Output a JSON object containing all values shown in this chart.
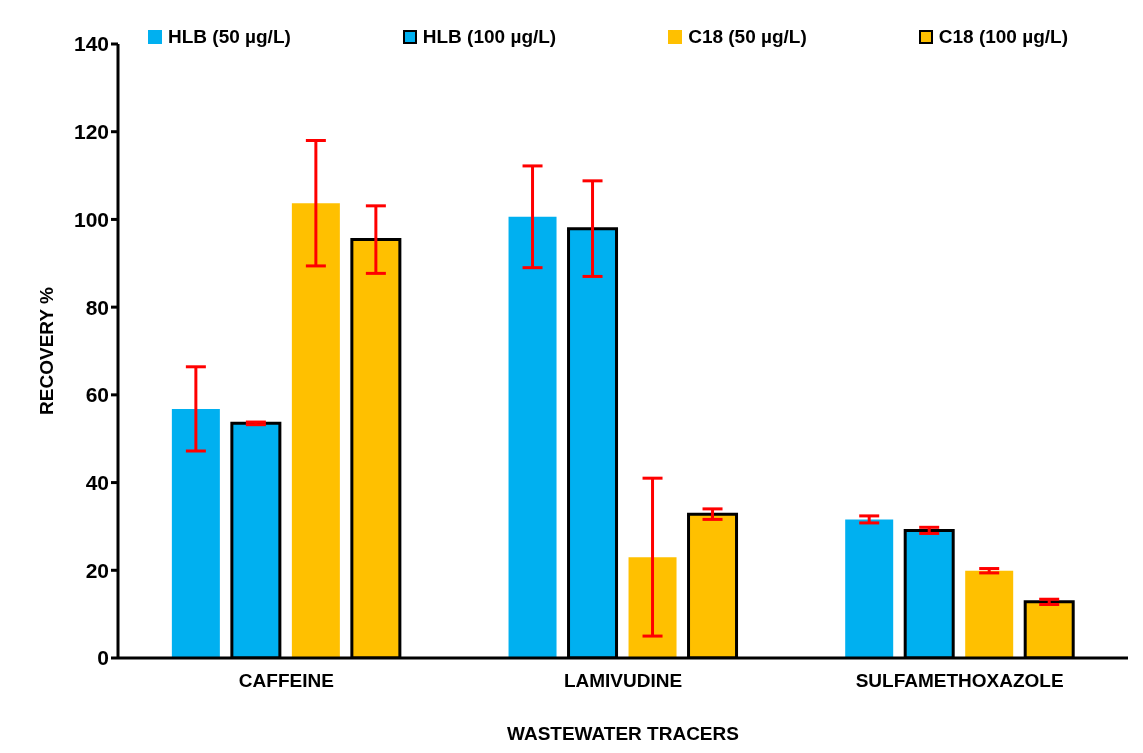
{
  "chart_data": {
    "type": "bar",
    "xlabel": "WASTEWATER TRACERS",
    "ylabel": "RECOVERY %",
    "categories": [
      "CAFFEINE",
      "LAMIVUDINE",
      "SULFAMETHOXAZOLE"
    ],
    "series": [
      {
        "name": "HLB (50 µg/L)",
        "color": "#00b0f0",
        "values": [
          56.8,
          100.6,
          31.6
        ],
        "errors": [
          9.6,
          11.6,
          0.8
        ]
      },
      {
        "name": "HLB (100 µg/L)",
        "color": "#00b0f0",
        "values": [
          53.5,
          97.9,
          29.1
        ],
        "errors": [
          0.3,
          10.9,
          0.7
        ]
      },
      {
        "name": "C18 (50 µg/L)",
        "color": "#ffc000",
        "values": [
          103.7,
          23,
          19.9
        ],
        "errors": [
          14.3,
          18,
          0.5
        ]
      },
      {
        "name": "C18 (100 µg/L)",
        "color": "#ffc000",
        "values": [
          95.4,
          32.8,
          12.8
        ],
        "errors": [
          7.7,
          1.2,
          0.6
        ]
      }
    ],
    "ylim": [
      0,
      140
    ],
    "yticks": [
      0,
      20,
      40,
      60,
      80,
      100,
      120,
      140
    ],
    "grid": false,
    "legend": "top"
  }
}
